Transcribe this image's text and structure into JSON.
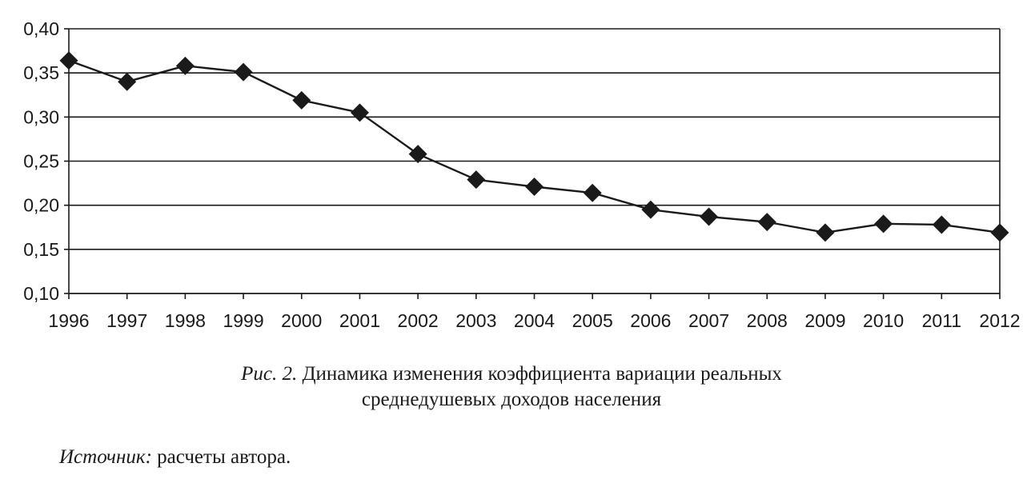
{
  "chart_data": {
    "type": "line",
    "x": [
      "1996",
      "1997",
      "1998",
      "1999",
      "2000",
      "2001",
      "2002",
      "2003",
      "2004",
      "2005",
      "2006",
      "2007",
      "2008",
      "2009",
      "2010",
      "2011",
      "2012"
    ],
    "series": [
      {
        "values": [
          0.364,
          0.34,
          0.358,
          0.351,
          0.319,
          0.305,
          0.258,
          0.229,
          0.221,
          0.214,
          0.195,
          0.187,
          0.181,
          0.169,
          0.179,
          0.178,
          0.169
        ],
        "marker": "diamond",
        "color": "#1a1a1a"
      }
    ],
    "ylim": [
      0.1,
      0.4
    ],
    "yticks": [
      "0,10",
      "0,15",
      "0,20",
      "0,25",
      "0,30",
      "0,35",
      "0,40"
    ],
    "ytick_values": [
      0.1,
      0.15,
      0.2,
      0.25,
      0.3,
      0.35,
      0.4
    ],
    "grid": "horizontal",
    "legend": "none",
    "xlabel": "",
    "ylabel": ""
  },
  "caption": {
    "fig_label": "Рис. 2.",
    "line1": "Динамика изменения коэффициента вариации реальных",
    "line2": "среднедушевых доходов населения"
  },
  "source": {
    "label": "Источник:",
    "text": "расчеты автора."
  }
}
